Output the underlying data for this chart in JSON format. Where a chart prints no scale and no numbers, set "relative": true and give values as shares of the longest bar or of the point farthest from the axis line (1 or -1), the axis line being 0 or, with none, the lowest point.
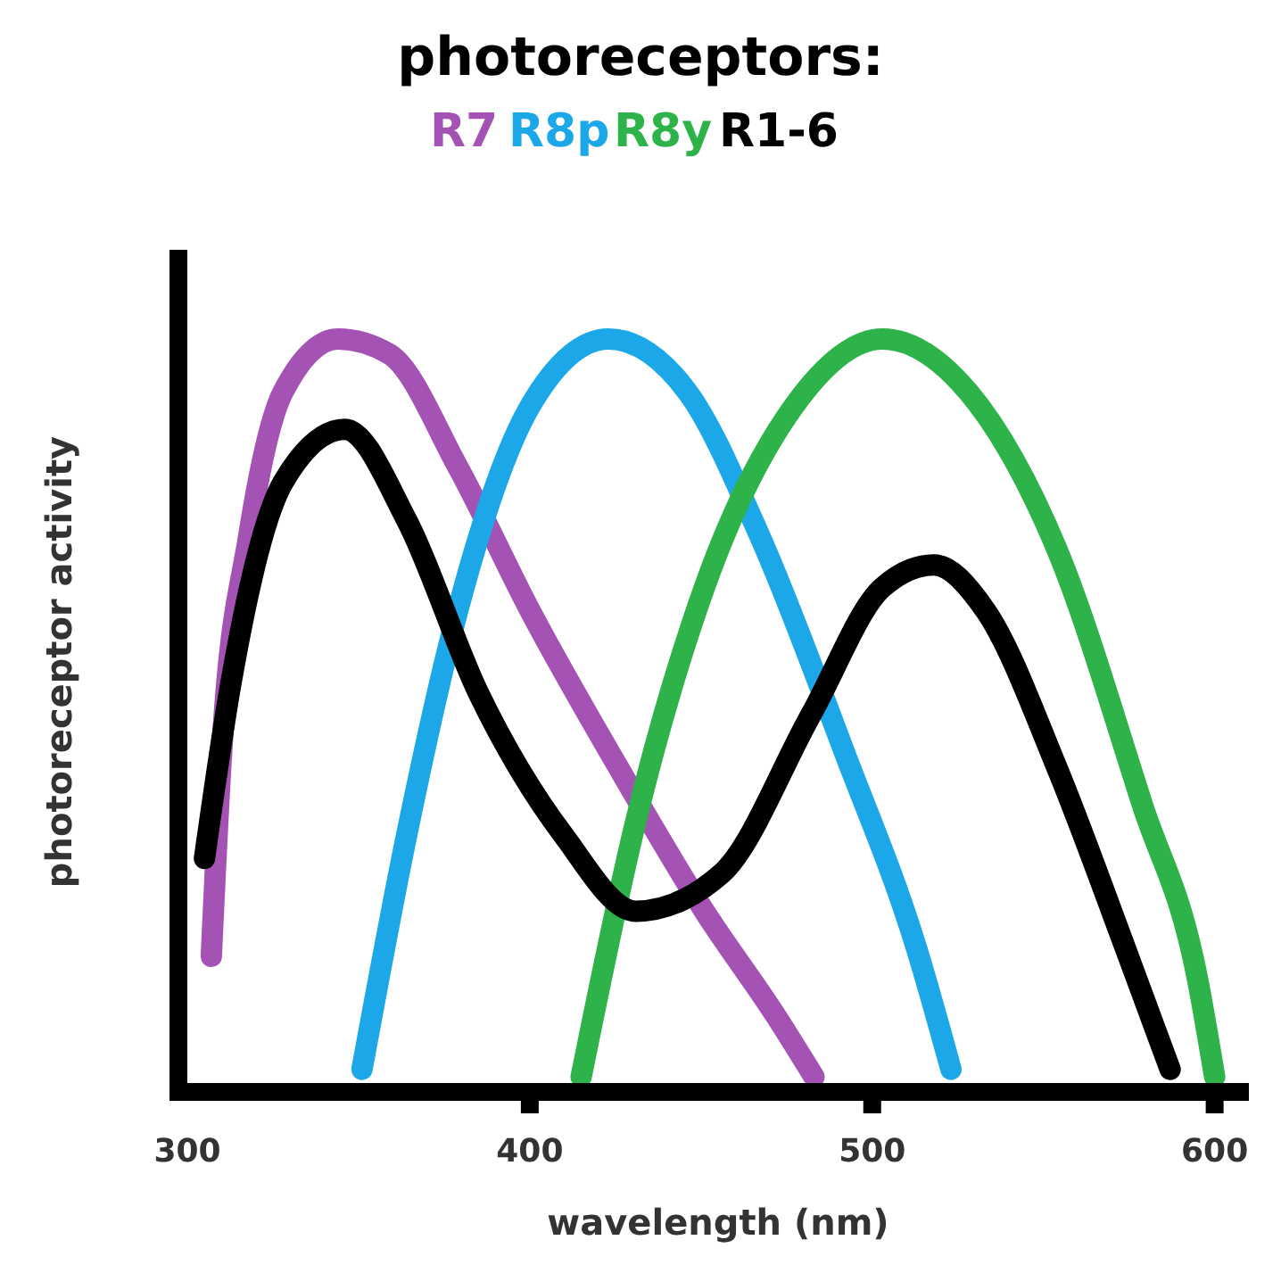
{
  "chart_data": {
    "type": "line",
    "relative": true,
    "legend_title": "photoreceptors:",
    "legend": "top",
    "xlabel": "wavelength (nm)",
    "ylabel": "photoreceptor activity",
    "xlim": [
      300,
      610
    ],
    "xticks": [
      300,
      400,
      500,
      600
    ],
    "line_style": "solid",
    "grid": false,
    "series": [
      {
        "name": "R7",
        "color": "#a453b4",
        "x": [
          307,
          310,
          318,
          328,
          344,
          359,
          379,
          400,
          426,
          451,
          472,
          483
        ],
        "values": [
          0.18,
          0.45,
          0.74,
          0.93,
          1.0,
          0.98,
          0.83,
          0.64,
          0.43,
          0.24,
          0.1,
          0.02
        ]
      },
      {
        "name": "R8p",
        "color": "#1ca8e8",
        "x": [
          351,
          364,
          379,
          400,
          423,
          446,
          467,
          492,
          513,
          523
        ],
        "values": [
          0.03,
          0.34,
          0.64,
          0.91,
          1.0,
          0.93,
          0.74,
          0.45,
          0.19,
          0.03
        ]
      },
      {
        "name": "R8y",
        "color": "#2db34a",
        "x": [
          415,
          431,
          451,
          477,
          503,
          528,
          554,
          579,
          595,
          600
        ],
        "values": [
          0.02,
          0.36,
          0.67,
          0.91,
          1.0,
          0.93,
          0.72,
          0.38,
          0.15,
          0.02
        ]
      },
      {
        "name": "R1-6",
        "color": "#000000",
        "x": [
          305,
          313,
          328,
          346,
          364,
          385,
          410,
          431,
          456,
          482,
          503,
          518,
          533,
          554,
          574,
          587
        ],
        "values": [
          0.31,
          0.55,
          0.81,
          0.88,
          0.76,
          0.53,
          0.34,
          0.24,
          0.29,
          0.5,
          0.67,
          0.7,
          0.64,
          0.43,
          0.19,
          0.03
        ]
      }
    ]
  }
}
